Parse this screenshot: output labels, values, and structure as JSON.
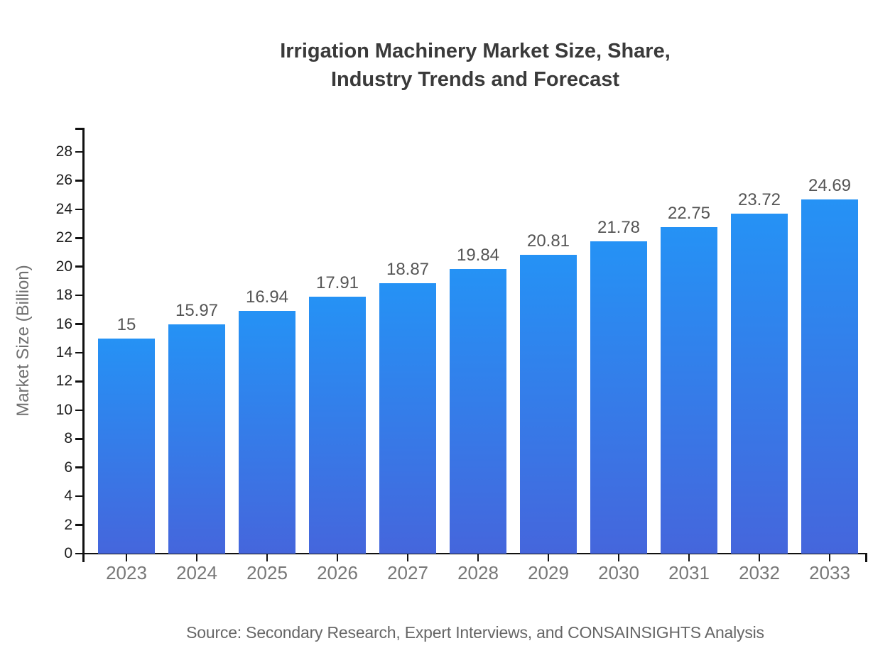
{
  "header": {
    "title_line1": "Irrigation Machinery Market Size, Share,",
    "title_line2": "Industry Trends and Forecast"
  },
  "chart_data": {
    "type": "bar",
    "title": "Irrigation Machinery Market Size, Share, Industry Trends and Forecast",
    "categories": [
      "2023",
      "2024",
      "2025",
      "2026",
      "2027",
      "2028",
      "2029",
      "2030",
      "2031",
      "2032",
      "2033"
    ],
    "values": [
      15,
      15.97,
      16.94,
      17.91,
      18.87,
      19.84,
      20.81,
      21.78,
      22.75,
      23.72,
      24.69
    ],
    "value_labels": [
      "15",
      "15.97",
      "16.94",
      "17.91",
      "18.87",
      "19.84",
      "20.81",
      "21.78",
      "22.75",
      "23.72",
      "24.69"
    ],
    "xlabel": "",
    "ylabel": "Market Size (Billion)",
    "ylim": [
      0,
      28
    ],
    "ytick_step": 2,
    "grid": "off",
    "legend": "none",
    "colors": {
      "bar_gradient_top": "#2592f5",
      "bar_gradient_bottom": "#4566dc",
      "axis": "#111111",
      "title_text": "#3a3a3a",
      "value_label_text": "#555555",
      "x_label_text": "#787878",
      "y_label_text": "#1c1c1c",
      "source_text": "#666666"
    },
    "source": "Source: Secondary Research, Expert Interviews, and CONSAINSIGHTS Analysis"
  }
}
